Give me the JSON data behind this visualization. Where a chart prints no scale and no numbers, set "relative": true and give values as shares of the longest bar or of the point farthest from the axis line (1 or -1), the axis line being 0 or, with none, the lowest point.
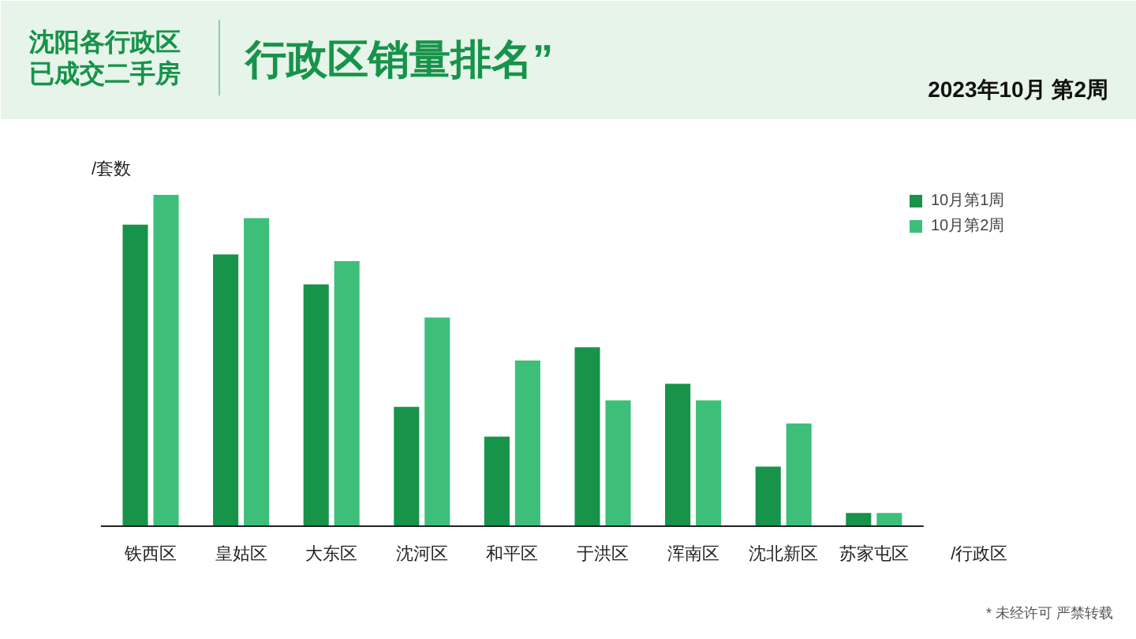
{
  "chart_data": {
    "type": "bar",
    "title": "行政区销量排名”",
    "subtitle": "2023年10月 第2周",
    "ylabel": "/套数",
    "xlabel": "/行政区",
    "annotations": [
      "沈阳各行政区已成交二手房",
      "* 未经许可 严禁转载"
    ],
    "categories": [
      "铁西区",
      "皇姑区",
      "大东区",
      "沈河区",
      "和平区",
      "于洪区",
      "浑南区",
      "沈北新区",
      "苏家屯区"
    ],
    "relative": true,
    "legend": "top right",
    "series": [
      {
        "name": "10月第1周",
        "color": "#17934a",
        "values": [
          0.91,
          0.82,
          0.73,
          0.36,
          0.27,
          0.54,
          0.43,
          0.18,
          0.04
        ]
      },
      {
        "name": "10月第2周",
        "color": "#3dbf7a",
        "values": [
          1.0,
          0.93,
          0.8,
          0.63,
          0.5,
          0.38,
          0.38,
          0.31,
          0.04
        ]
      }
    ]
  }
}
